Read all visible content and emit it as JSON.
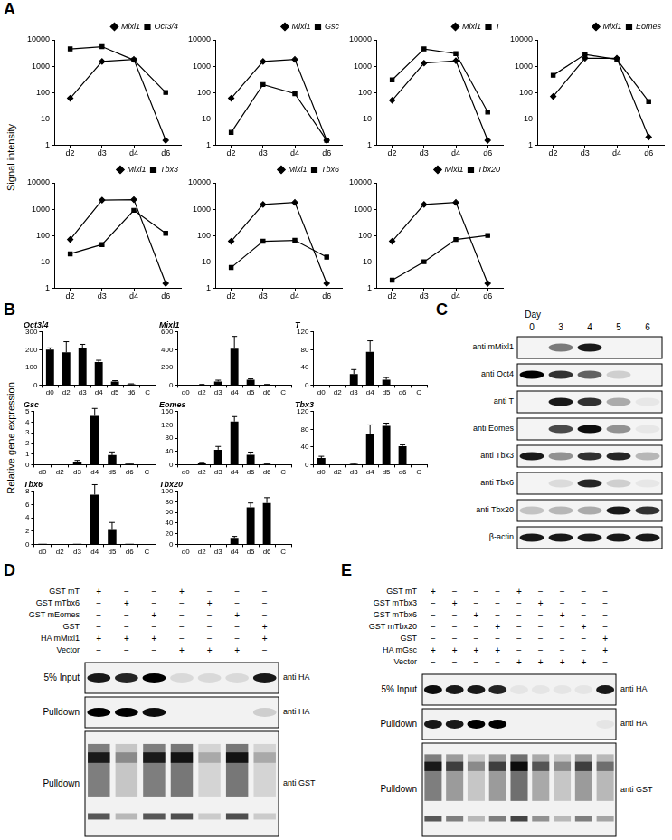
{
  "chart_data": [
    {
      "type": "line",
      "categories": [
        "d2",
        "d3",
        "d4",
        "d6"
      ],
      "log": "y",
      "ylim": [
        1,
        10000
      ],
      "yticks": [
        1,
        10,
        100,
        1000,
        10000
      ],
      "grid": false,
      "legend": "top-right",
      "series": [
        {
          "name": "Mixl1",
          "color": "#000000",
          "marker": "diamond",
          "values": [
            60,
            1500,
            1800,
            1.5
          ]
        },
        {
          "name": "Oct3/4",
          "color": "#000000",
          "marker": "square",
          "values": [
            4500,
            5500,
            1700,
            100
          ]
        }
      ]
    },
    {
      "type": "line",
      "categories": [
        "d2",
        "d3",
        "d4",
        "d6"
      ],
      "log": "y",
      "ylim": [
        1,
        10000
      ],
      "yticks": [
        1,
        10,
        100,
        1000,
        10000
      ],
      "grid": false,
      "legend": "top-right",
      "series": [
        {
          "name": "Mixl1",
          "color": "#000000",
          "marker": "diamond",
          "values": [
            60,
            1500,
            1800,
            1.5
          ]
        },
        {
          "name": "Gsc",
          "color": "#000000",
          "marker": "square",
          "values": [
            3,
            200,
            90,
            1.5
          ]
        }
      ]
    },
    {
      "type": "line",
      "categories": [
        "d2",
        "d3",
        "d4",
        "d6"
      ],
      "log": "y",
      "ylim": [
        1,
        10000
      ],
      "yticks": [
        1,
        10,
        100,
        1000,
        10000
      ],
      "grid": false,
      "legend": "top-right",
      "series": [
        {
          "name": "Mixl1",
          "color": "#000000",
          "marker": "diamond",
          "values": [
            50,
            1300,
            1600,
            1.5
          ]
        },
        {
          "name": "T",
          "color": "#000000",
          "marker": "square",
          "values": [
            300,
            4500,
            3000,
            18
          ]
        }
      ]
    },
    {
      "type": "line",
      "categories": [
        "d2",
        "d3",
        "d4",
        "d6"
      ],
      "log": "y",
      "ylim": [
        1,
        10000
      ],
      "yticks": [
        1,
        10,
        100,
        1000,
        10000
      ],
      "grid": false,
      "legend": "top-right",
      "series": [
        {
          "name": "Mixl1",
          "color": "#000000",
          "marker": "diamond",
          "values": [
            70,
            2000,
            2000,
            2
          ]
        },
        {
          "name": "Eomes",
          "color": "#000000",
          "marker": "square",
          "values": [
            450,
            2800,
            1800,
            45
          ]
        }
      ]
    },
    {
      "type": "line",
      "categories": [
        "d2",
        "d3",
        "d4",
        "d6"
      ],
      "log": "y",
      "ylim": [
        1,
        10000
      ],
      "yticks": [
        1,
        10,
        100,
        1000,
        10000
      ],
      "grid": false,
      "legend": "top-right",
      "series": [
        {
          "name": "Mixl1",
          "color": "#000000",
          "marker": "diamond",
          "values": [
            70,
            2200,
            2300,
            1.5
          ]
        },
        {
          "name": "Tbx3",
          "color": "#000000",
          "marker": "square",
          "values": [
            20,
            45,
            900,
            120
          ]
        }
      ]
    },
    {
      "type": "line",
      "categories": [
        "d2",
        "d3",
        "d4",
        "d6"
      ],
      "log": "y",
      "ylim": [
        1,
        10000
      ],
      "yticks": [
        1,
        10,
        100,
        1000,
        10000
      ],
      "grid": false,
      "legend": "top-right",
      "series": [
        {
          "name": "Mixl1",
          "color": "#000000",
          "marker": "diamond",
          "values": [
            60,
            1500,
            1800,
            1.5
          ]
        },
        {
          "name": "Tbx6",
          "color": "#000000",
          "marker": "square",
          "values": [
            6,
            60,
            65,
            15
          ]
        }
      ]
    },
    {
      "type": "line",
      "categories": [
        "d2",
        "d3",
        "d4",
        "d6"
      ],
      "log": "y",
      "ylim": [
        1,
        10000
      ],
      "yticks": [
        1,
        10,
        100,
        1000,
        10000
      ],
      "grid": false,
      "legend": "top-right",
      "series": [
        {
          "name": "Mixl1",
          "color": "#000000",
          "marker": "diamond",
          "values": [
            60,
            1500,
            1800,
            1.5
          ]
        },
        {
          "name": "Tbx20",
          "color": "#000000",
          "marker": "square",
          "values": [
            2,
            10,
            70,
            100
          ]
        }
      ]
    },
    {
      "type": "bar",
      "title": "Oct3/4",
      "categories": [
        "d0",
        "d2",
        "d3",
        "d4",
        "d5",
        "d6",
        "C"
      ],
      "values": [
        200,
        185,
        210,
        130,
        20,
        5,
        0
      ],
      "errors": [
        10,
        60,
        20,
        10,
        5,
        2,
        0
      ],
      "color": "#000000",
      "ylim": [
        0,
        300
      ],
      "yticks": [
        0,
        100,
        200,
        300
      ],
      "grid": false
    },
    {
      "type": "bar",
      "title": "Mixl1",
      "categories": [
        "d0",
        "d2",
        "d3",
        "d4",
        "d5",
        "d6",
        "C"
      ],
      "values": [
        2,
        5,
        40,
        410,
        60,
        5,
        0
      ],
      "errors": [
        0,
        2,
        15,
        140,
        10,
        2,
        0
      ],
      "color": "#000000",
      "ylim": [
        0,
        600
      ],
      "yticks": [
        0,
        200,
        400,
        600
      ],
      "grid": false
    },
    {
      "type": "bar",
      "title": "T",
      "categories": [
        "d0",
        "d2",
        "d3",
        "d4",
        "d5",
        "d6",
        "C"
      ],
      "values": [
        0,
        0,
        25,
        75,
        12,
        0,
        0
      ],
      "errors": [
        0,
        0,
        10,
        25,
        5,
        0,
        0
      ],
      "color": "#000000",
      "ylim": [
        0,
        120
      ],
      "yticks": [
        0,
        40,
        80,
        120
      ],
      "grid": false
    },
    {
      "type": "bar",
      "title": "Gsc",
      "categories": [
        "d0",
        "d2",
        "d3",
        "d4",
        "d5",
        "d6",
        "C"
      ],
      "values": [
        0,
        0,
        0.3,
        4.6,
        0.9,
        0.1,
        0
      ],
      "errors": [
        0,
        0,
        0.1,
        0.7,
        0.3,
        0.05,
        0
      ],
      "color": "#000000",
      "ylim": [
        0,
        5
      ],
      "yticks": [
        0,
        1,
        2,
        3,
        4,
        5
      ],
      "grid": false
    },
    {
      "type": "bar",
      "title": "Eomes",
      "categories": [
        "d0",
        "d2",
        "d3",
        "d4",
        "d5",
        "d6",
        "C"
      ],
      "values": [
        0,
        5,
        45,
        130,
        30,
        2,
        0
      ],
      "errors": [
        0,
        2,
        10,
        15,
        8,
        1,
        0
      ],
      "color": "#000000",
      "ylim": [
        0,
        160
      ],
      "yticks": [
        0,
        40,
        80,
        120,
        160
      ],
      "grid": false
    },
    {
      "type": "bar",
      "title": "Tbx3",
      "categories": [
        "d0",
        "d2",
        "d3",
        "d4",
        "d5",
        "d6",
        "C"
      ],
      "values": [
        15,
        0,
        2,
        70,
        88,
        42,
        0
      ],
      "errors": [
        4,
        0,
        1,
        20,
        6,
        3,
        0
      ],
      "color": "#000000",
      "ylim": [
        0,
        120
      ],
      "yticks": [
        0,
        40,
        80,
        120
      ],
      "grid": false
    },
    {
      "type": "bar",
      "title": "Tbx6",
      "categories": [
        "d0",
        "d2",
        "d3",
        "d4",
        "d5",
        "d6",
        "C"
      ],
      "values": [
        0.1,
        0,
        0.1,
        7.5,
        2.3,
        0.1,
        0
      ],
      "errors": [
        0,
        0,
        0,
        1.5,
        1,
        0,
        0
      ],
      "color": "#000000",
      "ylim": [
        0,
        8
      ],
      "yticks": [
        0,
        2,
        4,
        6,
        8
      ],
      "grid": false
    },
    {
      "type": "bar",
      "title": "Tbx20",
      "categories": [
        "d0",
        "d2",
        "d3",
        "d4",
        "d5",
        "d6",
        "C"
      ],
      "values": [
        0,
        0,
        0,
        12,
        70,
        78,
        0
      ],
      "errors": [
        0,
        0,
        0,
        3,
        8,
        10,
        0
      ],
      "color": "#000000",
      "ylim": [
        0,
        100
      ],
      "yticks": [
        0,
        20,
        40,
        60,
        80,
        100
      ],
      "grid": false
    }
  ],
  "figure": {
    "A": {
      "label": "A",
      "y_label": "Signal intensity"
    },
    "B": {
      "label": "B",
      "y_label": "Relative gene expression"
    },
    "C": {
      "label": "C",
      "header": "Day",
      "lanes": [
        "0",
        "3",
        "4",
        "5",
        "6"
      ],
      "rows": [
        {
          "name": "anti mMixl1",
          "band_intensity": [
            0,
            0.5,
            0.9,
            0,
            0
          ]
        },
        {
          "name": "anti Oct4",
          "band_intensity": [
            1,
            0.8,
            0.6,
            0.15,
            0
          ]
        },
        {
          "name": "anti T",
          "band_intensity": [
            0,
            0.9,
            0.8,
            0.3,
            0.05
          ]
        },
        {
          "name": "anti Eomes",
          "band_intensity": [
            0,
            0.7,
            0.95,
            0.4,
            0.05
          ]
        },
        {
          "name": "anti Tbx3",
          "band_intensity": [
            0.9,
            0.4,
            0.8,
            0.85,
            0.25
          ]
        },
        {
          "name": "anti Tbx6",
          "band_intensity": [
            0,
            0.1,
            0.85,
            0.15,
            0.05
          ]
        },
        {
          "name": "anti Tbx20",
          "band_intensity": [
            0.2,
            0.25,
            0.3,
            0.9,
            0.8
          ]
        },
        {
          "name": "β-actin",
          "band_intensity": [
            0.9,
            0.9,
            0.9,
            0.9,
            0.9
          ]
        }
      ]
    },
    "D": {
      "label": "D",
      "conditions": [
        {
          "name": "GST mT",
          "marks": [
            "+",
            "−",
            "−",
            "+",
            "−",
            "−",
            "−"
          ]
        },
        {
          "name": "GST mTbx6",
          "marks": [
            "−",
            "+",
            "−",
            "−",
            "+",
            "−",
            "−"
          ]
        },
        {
          "name": "GST mEomes",
          "marks": [
            "−",
            "−",
            "+",
            "−",
            "−",
            "+",
            "−"
          ]
        },
        {
          "name": "GST",
          "marks": [
            "−",
            "−",
            "−",
            "−",
            "−",
            "−",
            "+"
          ]
        },
        {
          "name": "HA mMixl1",
          "marks": [
            "+",
            "+",
            "+",
            "−",
            "−",
            "−",
            "+"
          ]
        },
        {
          "name": "Vector",
          "marks": [
            "−",
            "−",
            "−",
            "+",
            "+",
            "+",
            "−"
          ]
        }
      ],
      "blots": [
        {
          "name": "5% Input",
          "antibody": "anti HA",
          "band_intensity": [
            0.9,
            0.85,
            1,
            0.1,
            0.1,
            0.1,
            0.9
          ]
        },
        {
          "name": "Pulldown",
          "antibody": "anti HA",
          "band_intensity": [
            1,
            1,
            0.95,
            0,
            0,
            0,
            0.15
          ]
        },
        {
          "name": "Pulldown",
          "antibody": "anti GST",
          "band_intensity": [
            0.8,
            0.3,
            0.8,
            0.85,
            0.2,
            0.85,
            0.2
          ]
        }
      ]
    },
    "E": {
      "label": "E",
      "conditions": [
        {
          "name": "GST mT",
          "marks": [
            "+",
            "−",
            "−",
            "−",
            "+",
            "−",
            "−",
            "−",
            "−"
          ]
        },
        {
          "name": "GST mTbx3",
          "marks": [
            "−",
            "+",
            "−",
            "−",
            "−",
            "+",
            "−",
            "−",
            "−"
          ]
        },
        {
          "name": "GST mTbx6",
          "marks": [
            "−",
            "−",
            "+",
            "−",
            "−",
            "−",
            "+",
            "−",
            "−"
          ]
        },
        {
          "name": "GST mTbx20",
          "marks": [
            "−",
            "−",
            "−",
            "+",
            "−",
            "−",
            "−",
            "+",
            "−"
          ]
        },
        {
          "name": "GST",
          "marks": [
            "−",
            "−",
            "−",
            "−",
            "−",
            "−",
            "−",
            "−",
            "+"
          ]
        },
        {
          "name": "HA mGsc",
          "marks": [
            "+",
            "+",
            "+",
            "+",
            "−",
            "−",
            "−",
            "−",
            "+"
          ]
        },
        {
          "name": "Vector",
          "marks": [
            "−",
            "−",
            "−",
            "−",
            "+",
            "+",
            "+",
            "+",
            "−"
          ]
        }
      ],
      "blots": [
        {
          "name": "5% Input",
          "antibody": "anti HA",
          "band_intensity": [
            0.95,
            0.9,
            0.9,
            0.85,
            0.05,
            0.05,
            0.05,
            0.05,
            0.9
          ]
        },
        {
          "name": "Pulldown",
          "antibody": "anti HA",
          "band_intensity": [
            0.9,
            0.9,
            1,
            1,
            0,
            0,
            0,
            0,
            0.05
          ]
        },
        {
          "name": "Pulldown",
          "antibody": "anti GST",
          "band_intensity": [
            0.8,
            0.6,
            0.3,
            0.6,
            0.9,
            0.5,
            0.3,
            0.6,
            0.4
          ]
        }
      ]
    }
  }
}
